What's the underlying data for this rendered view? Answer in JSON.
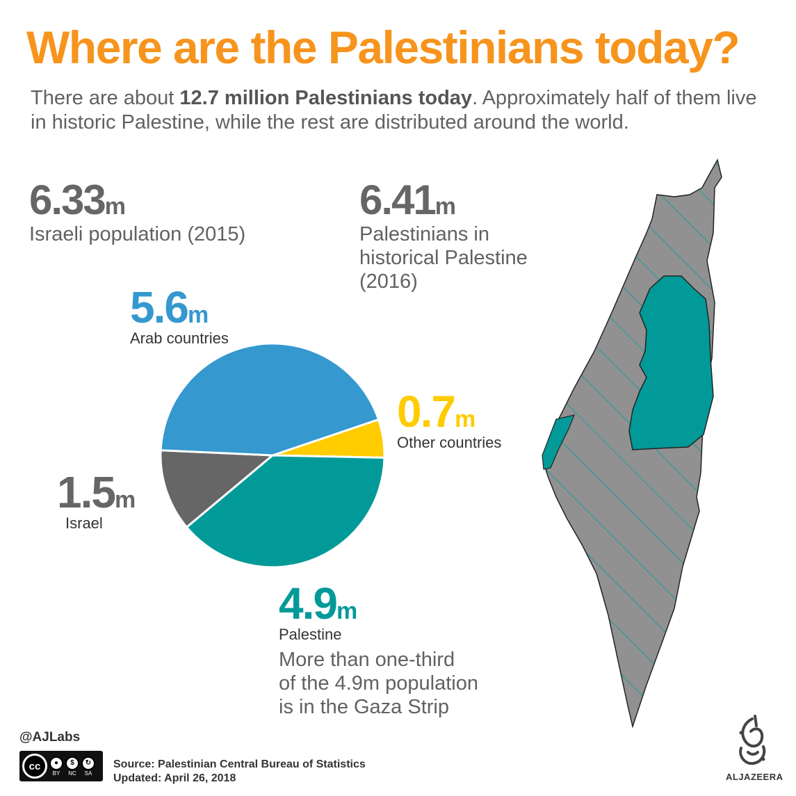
{
  "header": {
    "title": "Where are the Palestinians today?",
    "intro_before": "There are about ",
    "intro_bold": "12.7 million Palestinians today",
    "intro_after": ". Approximately half of them live in historic Palestine, while the rest are distributed around the world."
  },
  "stats": {
    "israeli": {
      "value": "6.33",
      "unit": "m",
      "label": "Israeli population (2015)"
    },
    "historical": {
      "value": "6.41",
      "unit": "m",
      "label_lines": [
        "Palestinians in",
        "historical Palestine",
        "(2016)"
      ]
    }
  },
  "chart_data": {
    "type": "pie",
    "slices": [
      {
        "display": "5.6",
        "value": 5.6,
        "unit": "m",
        "label": "Arab countries",
        "color": "#3598cf"
      },
      {
        "display": "0.7",
        "value": 0.7,
        "unit": "m",
        "label": "Other countries",
        "color": "#ffcc00"
      },
      {
        "display": "4.9",
        "value": 4.9,
        "unit": "m",
        "label": "Palestine",
        "color": "#019a98"
      },
      {
        "display": "1.5",
        "value": 1.5,
        "unit": "m",
        "label": "Israel",
        "color": "#666666"
      }
    ]
  },
  "note_lines": [
    "More than one-third",
    "of the 4.9m population",
    "is in the Gaza Strip"
  ],
  "footer": {
    "handle": "@AJLabs",
    "license": {
      "cc": "cc",
      "tags": [
        "BY",
        "NC",
        "SA"
      ]
    },
    "source": "Source: Palestinian Central Bureau of Statistics",
    "updated": "Updated: April 26, 2018",
    "brand": "ALJAZEERA"
  },
  "map": {
    "fill": "#919191",
    "hatch": "#1a9aa0",
    "territory": "#019a98"
  }
}
